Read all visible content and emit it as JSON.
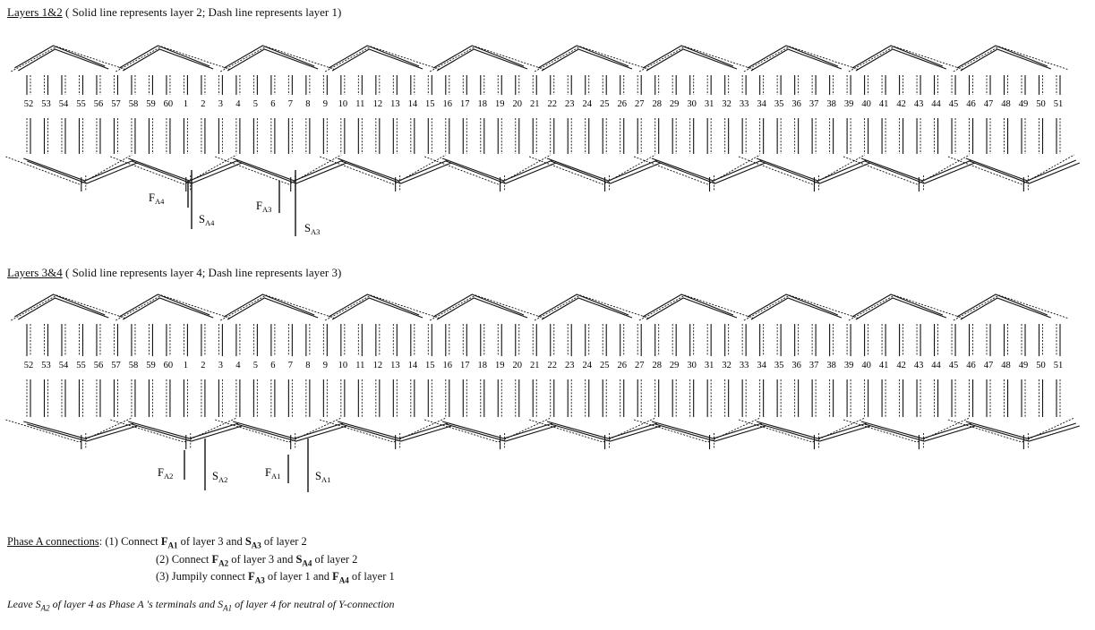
{
  "section1": {
    "title": "Layers 1&2",
    "subtitle": "( Solid line represents layer 2; Dash line represents layer 1)"
  },
  "section2": {
    "title": "Layers 3&4",
    "subtitle": "( Solid line represents layer 4; Dash line represents layer 3)"
  },
  "slot_numbers": [
    "52",
    "53",
    "54",
    "55",
    "56",
    "57",
    "58",
    "59",
    "60",
    "1",
    "2",
    "3",
    "4",
    "5",
    "6",
    "7",
    "8",
    "9",
    "10",
    "11",
    "12",
    "13",
    "14",
    "15",
    "16",
    "17",
    "18",
    "19",
    "20",
    "21",
    "22",
    "23",
    "24",
    "25",
    "26",
    "27",
    "28",
    "29",
    "30",
    "31",
    "32",
    "33",
    "34",
    "35",
    "36",
    "37",
    "38",
    "39",
    "40",
    "41",
    "42",
    "43",
    "44",
    "45",
    "46",
    "47",
    "48",
    "49",
    "50",
    "51"
  ],
  "diagram1_terminals": [
    {
      "main": "F",
      "sub": "A4"
    },
    {
      "main": "S",
      "sub": "A4"
    },
    {
      "main": "F",
      "sub": "A3"
    },
    {
      "main": "S",
      "sub": "A3"
    }
  ],
  "diagram2_terminals": [
    {
      "main": "F",
      "sub": "A2"
    },
    {
      "main": "S",
      "sub": "A2"
    },
    {
      "main": "F",
      "sub": "A1"
    },
    {
      "main": "S",
      "sub": "A1"
    }
  ],
  "connections": {
    "heading": "Phase A connections",
    "colon": ":",
    "items": [
      {
        "pre": "(1) Connect ",
        "a": "F",
        "a_sub": "A1",
        "mid": " of layer 3 and  ",
        "b": "S",
        "b_sub": "A3",
        "post": " of layer 2"
      },
      {
        "pre": "(2) Connect ",
        "a": "F",
        "a_sub": "A2",
        "mid": " of layer 3 and ",
        "b": "S",
        "b_sub": "A4",
        "post": " of layer 2"
      },
      {
        "pre": "(3) Jumpily  connect ",
        "a": "F",
        "a_sub": "A3",
        "mid": " of layer 1 and ",
        "b": "F",
        "b_sub": "A4",
        "post": " of layer 1"
      }
    ]
  },
  "note": {
    "t1": "Leave ",
    "s1": "S",
    "s1_sub": "A2",
    "t2": " of layer 4 as Phase A 's terminals and ",
    "s2": "S",
    "s2_sub": "A1",
    "t3": " of layer 4 for neutral of Y-connection"
  }
}
